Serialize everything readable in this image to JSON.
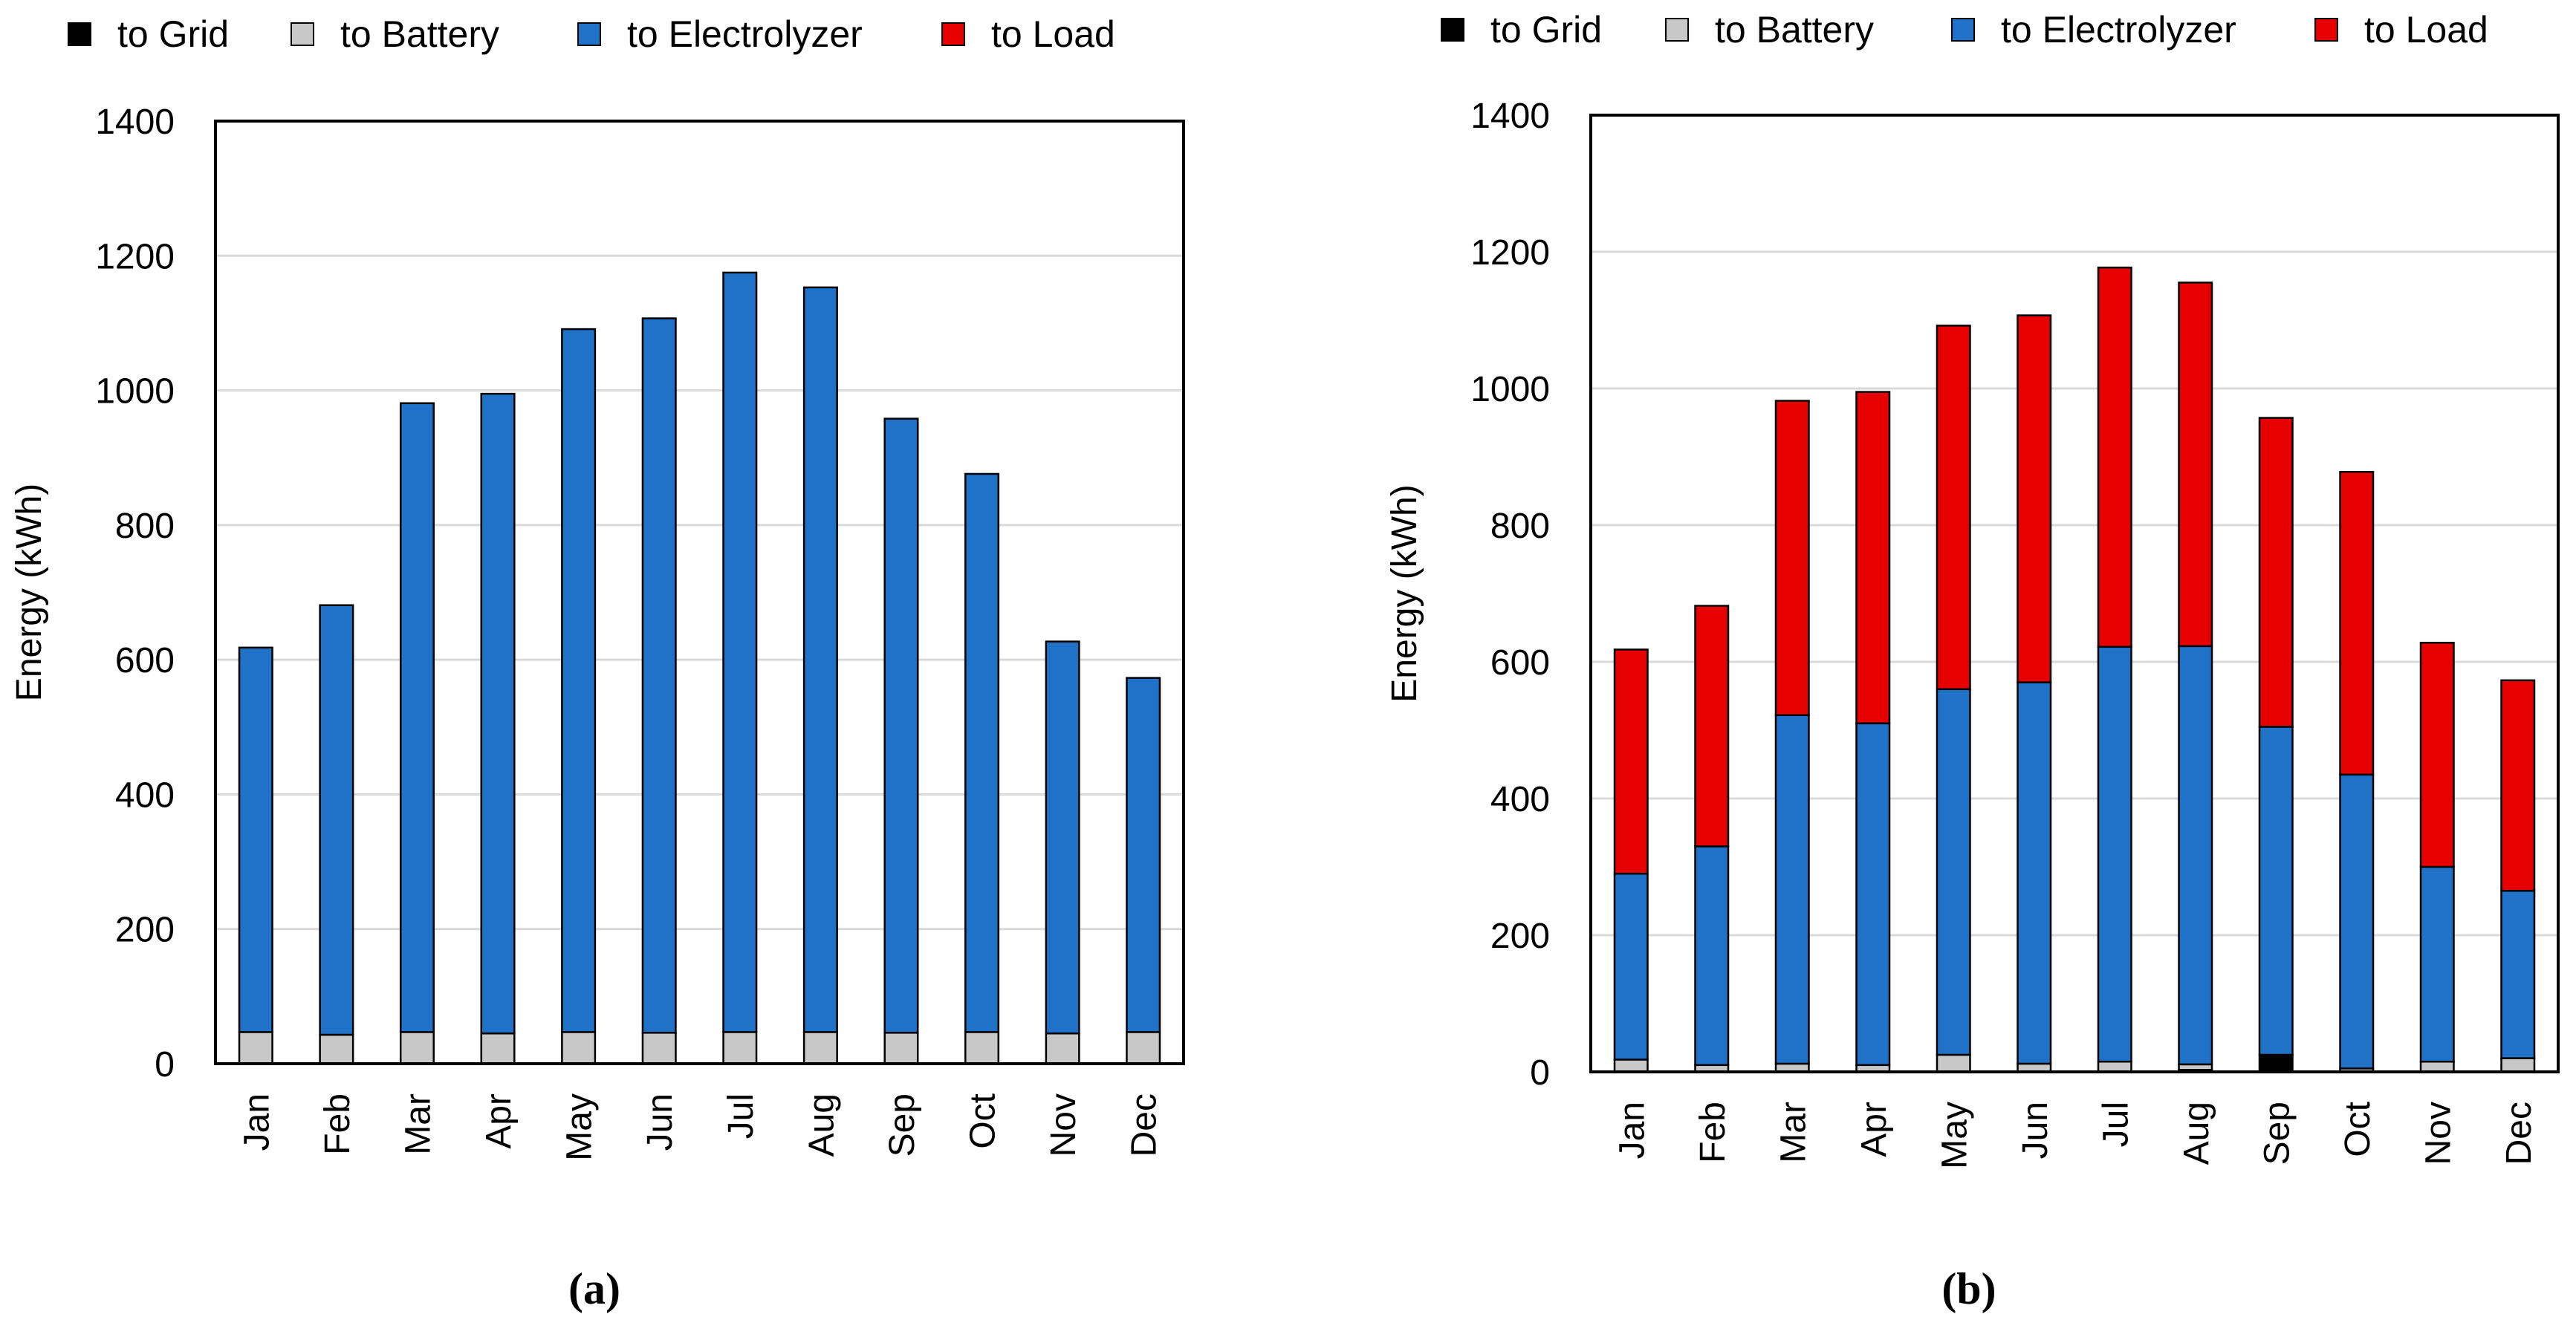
{
  "colors": {
    "to_grid": "#000000",
    "to_battery": "#c8c8c8",
    "to_electrolyzer": "#1f72c8",
    "to_load": "#e60000",
    "gridline": "#d9d9d9",
    "axis": "#000000"
  },
  "chart_data": [
    {
      "type": "bar",
      "stacked": true,
      "panel_label": "(a)",
      "title": "",
      "xlabel": "",
      "ylabel": "Energy (kWh)",
      "ylim": [
        0,
        1400
      ],
      "yticks": [
        0,
        200,
        400,
        600,
        800,
        1000,
        1200,
        1400
      ],
      "grid": true,
      "legend_position": "top-left",
      "categories": [
        "Jan",
        "Feb",
        "Mar",
        "Apr",
        "May",
        "Jun",
        "Jul",
        "Aug",
        "Sep",
        "Oct",
        "Nov",
        "Dec"
      ],
      "series": [
        {
          "name": "to Grid",
          "key": "to_grid",
          "values": [
            0,
            0,
            0,
            0,
            0,
            0,
            0,
            0,
            0,
            0,
            0,
            0
          ]
        },
        {
          "name": "to Battery",
          "key": "to_battery",
          "values": [
            47,
            43,
            47,
            45,
            47,
            46,
            47,
            47,
            46,
            47,
            45,
            47
          ]
        },
        {
          "name": "to Electrolyzer",
          "key": "to_electrolyzer",
          "values": [
            571,
            638,
            934,
            950,
            1044,
            1061,
            1128,
            1106,
            912,
            829,
            582,
            526
          ]
        },
        {
          "name": "to Load",
          "key": "to_load",
          "values": [
            0,
            0,
            0,
            0,
            0,
            0,
            0,
            0,
            0,
            0,
            0,
            0
          ]
        }
      ]
    },
    {
      "type": "bar",
      "stacked": true,
      "panel_label": "(b)",
      "title": "",
      "xlabel": "",
      "ylabel": "Energy (kWh)",
      "ylim": [
        0,
        1400
      ],
      "yticks": [
        0,
        200,
        400,
        600,
        800,
        1000,
        1200,
        1400
      ],
      "grid": true,
      "legend_position": "top-left",
      "categories": [
        "Jan",
        "Feb",
        "Mar",
        "Apr",
        "May",
        "Jun",
        "Jul",
        "Aug",
        "Sep",
        "Oct",
        "Nov",
        "Dec"
      ],
      "series": [
        {
          "name": "to Grid",
          "key": "to_grid",
          "values": [
            0,
            0,
            0,
            0,
            0,
            0,
            0,
            3,
            25,
            0,
            0,
            0
          ]
        },
        {
          "name": "to Battery",
          "key": "to_battery",
          "values": [
            18,
            10,
            12,
            10,
            25,
            12,
            15,
            8,
            0,
            5,
            15,
            20
          ]
        },
        {
          "name": "to Electrolyzer",
          "key": "to_electrolyzer",
          "values": [
            272,
            320,
            510,
            500,
            535,
            558,
            607,
            612,
            480,
            430,
            285,
            245
          ]
        },
        {
          "name": "to Load",
          "key": "to_load",
          "values": [
            328,
            352,
            460,
            485,
            532,
            537,
            555,
            532,
            452,
            443,
            328,
            308
          ]
        }
      ]
    }
  ]
}
